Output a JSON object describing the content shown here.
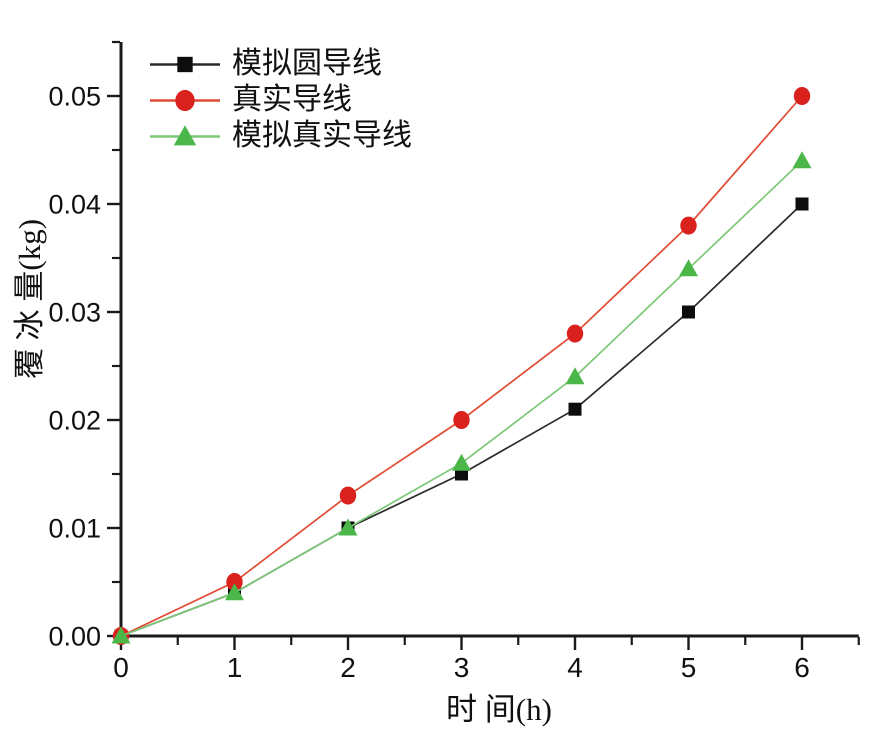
{
  "figure": {
    "background": "#ffffff",
    "axis_color": "#1a1a1a"
  },
  "chart_data": {
    "type": "line",
    "x": [
      0,
      1,
      2,
      3,
      4,
      5,
      6
    ],
    "series": [
      {
        "name": "模拟圆导线",
        "marker": "square",
        "marker_color": "#0d0d0d",
        "line_color": "#2a2a2a",
        "values": [
          0.0,
          0.004,
          0.01,
          0.015,
          0.021,
          0.03,
          0.04
        ]
      },
      {
        "name": "真实导线",
        "marker": "circle",
        "marker_color": "#d9221e",
        "line_color": "#e14b33",
        "values": [
          0.0,
          0.005,
          0.013,
          0.02,
          0.028,
          0.038,
          0.05
        ]
      },
      {
        "name": "模拟真实导线",
        "marker": "triangle",
        "marker_color": "#4bb749",
        "line_color": "#7cc877",
        "values": [
          0.0,
          0.004,
          0.01,
          0.016,
          0.024,
          0.034,
          0.044
        ]
      }
    ],
    "xlabel": "时 间(h)",
    "ylabel": "覆 冰 量(kg)",
    "xlim": [
      0,
      6.5
    ],
    "ylim": [
      0,
      0.055
    ],
    "x_major_ticks": [
      0,
      1,
      2,
      3,
      4,
      5,
      6
    ],
    "x_minor_step": 0.5,
    "y_major_ticks": [
      0.0,
      0.01,
      0.02,
      0.03,
      0.04,
      0.05
    ],
    "y_minor_step": 0.005,
    "y_tick_format_decimals": 2,
    "grid": false,
    "legend_position": "top-left-inside"
  }
}
